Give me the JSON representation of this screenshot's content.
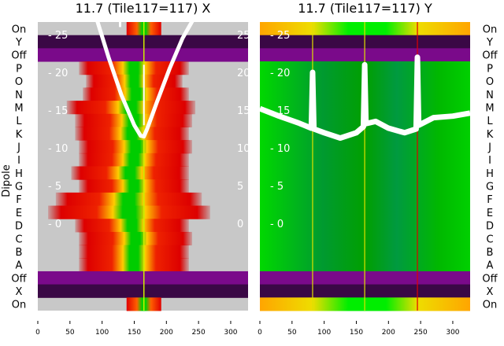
{
  "chart_data": {
    "type": "heatmap",
    "ylabel": "Dipole",
    "row_labels": [
      "On",
      "Y",
      "Off",
      "P",
      "O",
      "N",
      "M",
      "L",
      "K",
      "J",
      "I",
      "H",
      "G",
      "F",
      "E",
      "D",
      "C",
      "B",
      "A",
      "Off",
      "X",
      "On"
    ],
    "xticks": [
      0,
      50,
      100,
      150,
      200,
      250,
      300
    ],
    "yticks": [
      0,
      5,
      10,
      15,
      20,
      25
    ],
    "xlim": [
      0,
      327
    ],
    "ylim_inner": [
      -10.8,
      27.5
    ],
    "panels": [
      {
        "title": "11.7 (Tile117=117) X",
        "center": 165,
        "dipole_extent": [
          [
            64,
            235
          ],
          [
            75,
            225
          ],
          [
            70,
            235
          ],
          [
            45,
            245
          ],
          [
            58,
            240
          ],
          [
            58,
            235
          ],
          [
            64,
            240
          ],
          [
            64,
            235
          ],
          [
            52,
            235
          ],
          [
            64,
            235
          ],
          [
            28,
            255
          ],
          [
            16,
            268
          ],
          [
            58,
            235
          ],
          [
            64,
            240
          ],
          [
            64,
            235
          ],
          [
            64,
            235
          ]
        ],
        "curve": [
          [
            90,
            27.5
          ],
          [
            110,
            22
          ],
          [
            130,
            17
          ],
          [
            150,
            13
          ],
          [
            160,
            11.6
          ],
          [
            165,
            11.5
          ],
          [
            170,
            12.5
          ],
          [
            185,
            16
          ],
          [
            205,
            20.5
          ],
          [
            225,
            24.5
          ],
          [
            245,
            27.5
          ]
        ],
        "spike_x": 165
      },
      {
        "title": "11.7 (Tile117=117) Y",
        "vertical_lines": [
          {
            "x": 82,
            "color": "#e0e000"
          },
          {
            "x": 163,
            "color": "#e0e000"
          },
          {
            "x": 245,
            "color": "#e00000"
          }
        ],
        "curve": [
          [
            0,
            15.2
          ],
          [
            30,
            14.2
          ],
          [
            60,
            13.3
          ],
          [
            80,
            12.6
          ],
          [
            82,
            20
          ],
          [
            84,
            12.5
          ],
          [
            100,
            12
          ],
          [
            125,
            11.3
          ],
          [
            150,
            12
          ],
          [
            161,
            12.8
          ],
          [
            163,
            21
          ],
          [
            165,
            13.2
          ],
          [
            180,
            13.5
          ],
          [
            200,
            12.6
          ],
          [
            225,
            12
          ],
          [
            243,
            12.5
          ],
          [
            245,
            22
          ],
          [
            247,
            13
          ],
          [
            270,
            14
          ],
          [
            300,
            14.2
          ],
          [
            327,
            14.6
          ]
        ]
      }
    ]
  }
}
